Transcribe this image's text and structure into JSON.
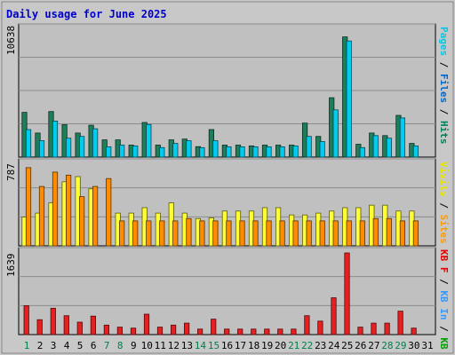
{
  "chart_data": {
    "type": "bar",
    "title": "Daily usage for June 2025",
    "days": [
      "1",
      "2",
      "3",
      "4",
      "5",
      "6",
      "7",
      "8",
      "9",
      "10",
      "11",
      "12",
      "13",
      "14",
      "15",
      "16",
      "17",
      "18",
      "19",
      "20",
      "21",
      "22",
      "23",
      "24",
      "25",
      "26",
      "27",
      "28",
      "29",
      "30",
      "31"
    ],
    "weekend_days": [
      "1",
      "7",
      "8",
      "14",
      "15",
      "21",
      "22",
      "28",
      "29"
    ],
    "top_panel": {
      "max_label": "10638",
      "ymax": 10638,
      "legend": [
        {
          "text": "Pages",
          "color": "#00c8e6"
        },
        {
          "text": "Files",
          "color": "#0066cc"
        },
        {
          "text": "Hits",
          "color": "#00805a"
        }
      ],
      "series": [
        {
          "name": "Hits",
          "color": "#1e7e5a",
          "values": [
            3720,
            2000,
            3790,
            2700,
            2000,
            2650,
            1430,
            1430,
            1000,
            2880,
            1000,
            1430,
            1500,
            870,
            2290,
            1000,
            1000,
            930,
            1000,
            1000,
            1000,
            2830,
            1720,
            4940,
            10000,
            1070,
            2000,
            1790,
            3470,
            1140,
            0
          ]
        },
        {
          "name": "Pages",
          "color": "#00ccf0",
          "values": [
            2290,
            1360,
            3000,
            1570,
            1720,
            2360,
            860,
            1000,
            930,
            2720,
            790,
            1140,
            1360,
            790,
            1360,
            860,
            860,
            860,
            860,
            860,
            930,
            1720,
            1290,
            3930,
            9660,
            790,
            1790,
            1570,
            3260,
            930,
            0
          ]
        }
      ]
    },
    "middle_panel": {
      "max_label": "787",
      "ymax": 787,
      "legend": [
        {
          "text": "Visits",
          "color": "#e6e600"
        },
        {
          "text": "Sites",
          "color": "#ff9900"
        }
      ],
      "series": [
        {
          "name": "Visits",
          "color": "#ffff33",
          "values": [
            278,
            316,
            414,
            618,
            667,
            549,
            0,
            316,
            316,
            368,
            316,
            414,
            316,
            263,
            270,
            335,
            335,
            335,
            368,
            368,
            298,
            298,
            316,
            335,
            368,
            368,
            392,
            392,
            335,
            335,
            0
          ]
        },
        {
          "name": "Sites",
          "color": "#ff8c00",
          "values": [
            754,
            572,
            711,
            682,
            474,
            572,
            648,
            240,
            240,
            240,
            240,
            240,
            263,
            240,
            240,
            240,
            240,
            240,
            240,
            240,
            240,
            240,
            240,
            240,
            240,
            240,
            263,
            263,
            240,
            240,
            0
          ]
        }
      ]
    },
    "bottom_panel": {
      "max_label": "1639",
      "ymax": 1639,
      "legend": [
        {
          "text": "KB F",
          "color": "#e60000"
        },
        {
          "text": "KB In",
          "color": "#3399ff"
        },
        {
          "text": "KB Out",
          "color": "#00a000"
        }
      ],
      "series": [
        {
          "name": "KB F",
          "color": "#e62020",
          "values": [
            580,
            300,
            530,
            380,
            250,
            370,
            190,
            150,
            130,
            410,
            150,
            190,
            230,
            110,
            310,
            110,
            110,
            110,
            110,
            110,
            110,
            380,
            270,
            740,
            1639,
            150,
            230,
            230,
            470,
            130,
            0
          ]
        }
      ]
    }
  }
}
